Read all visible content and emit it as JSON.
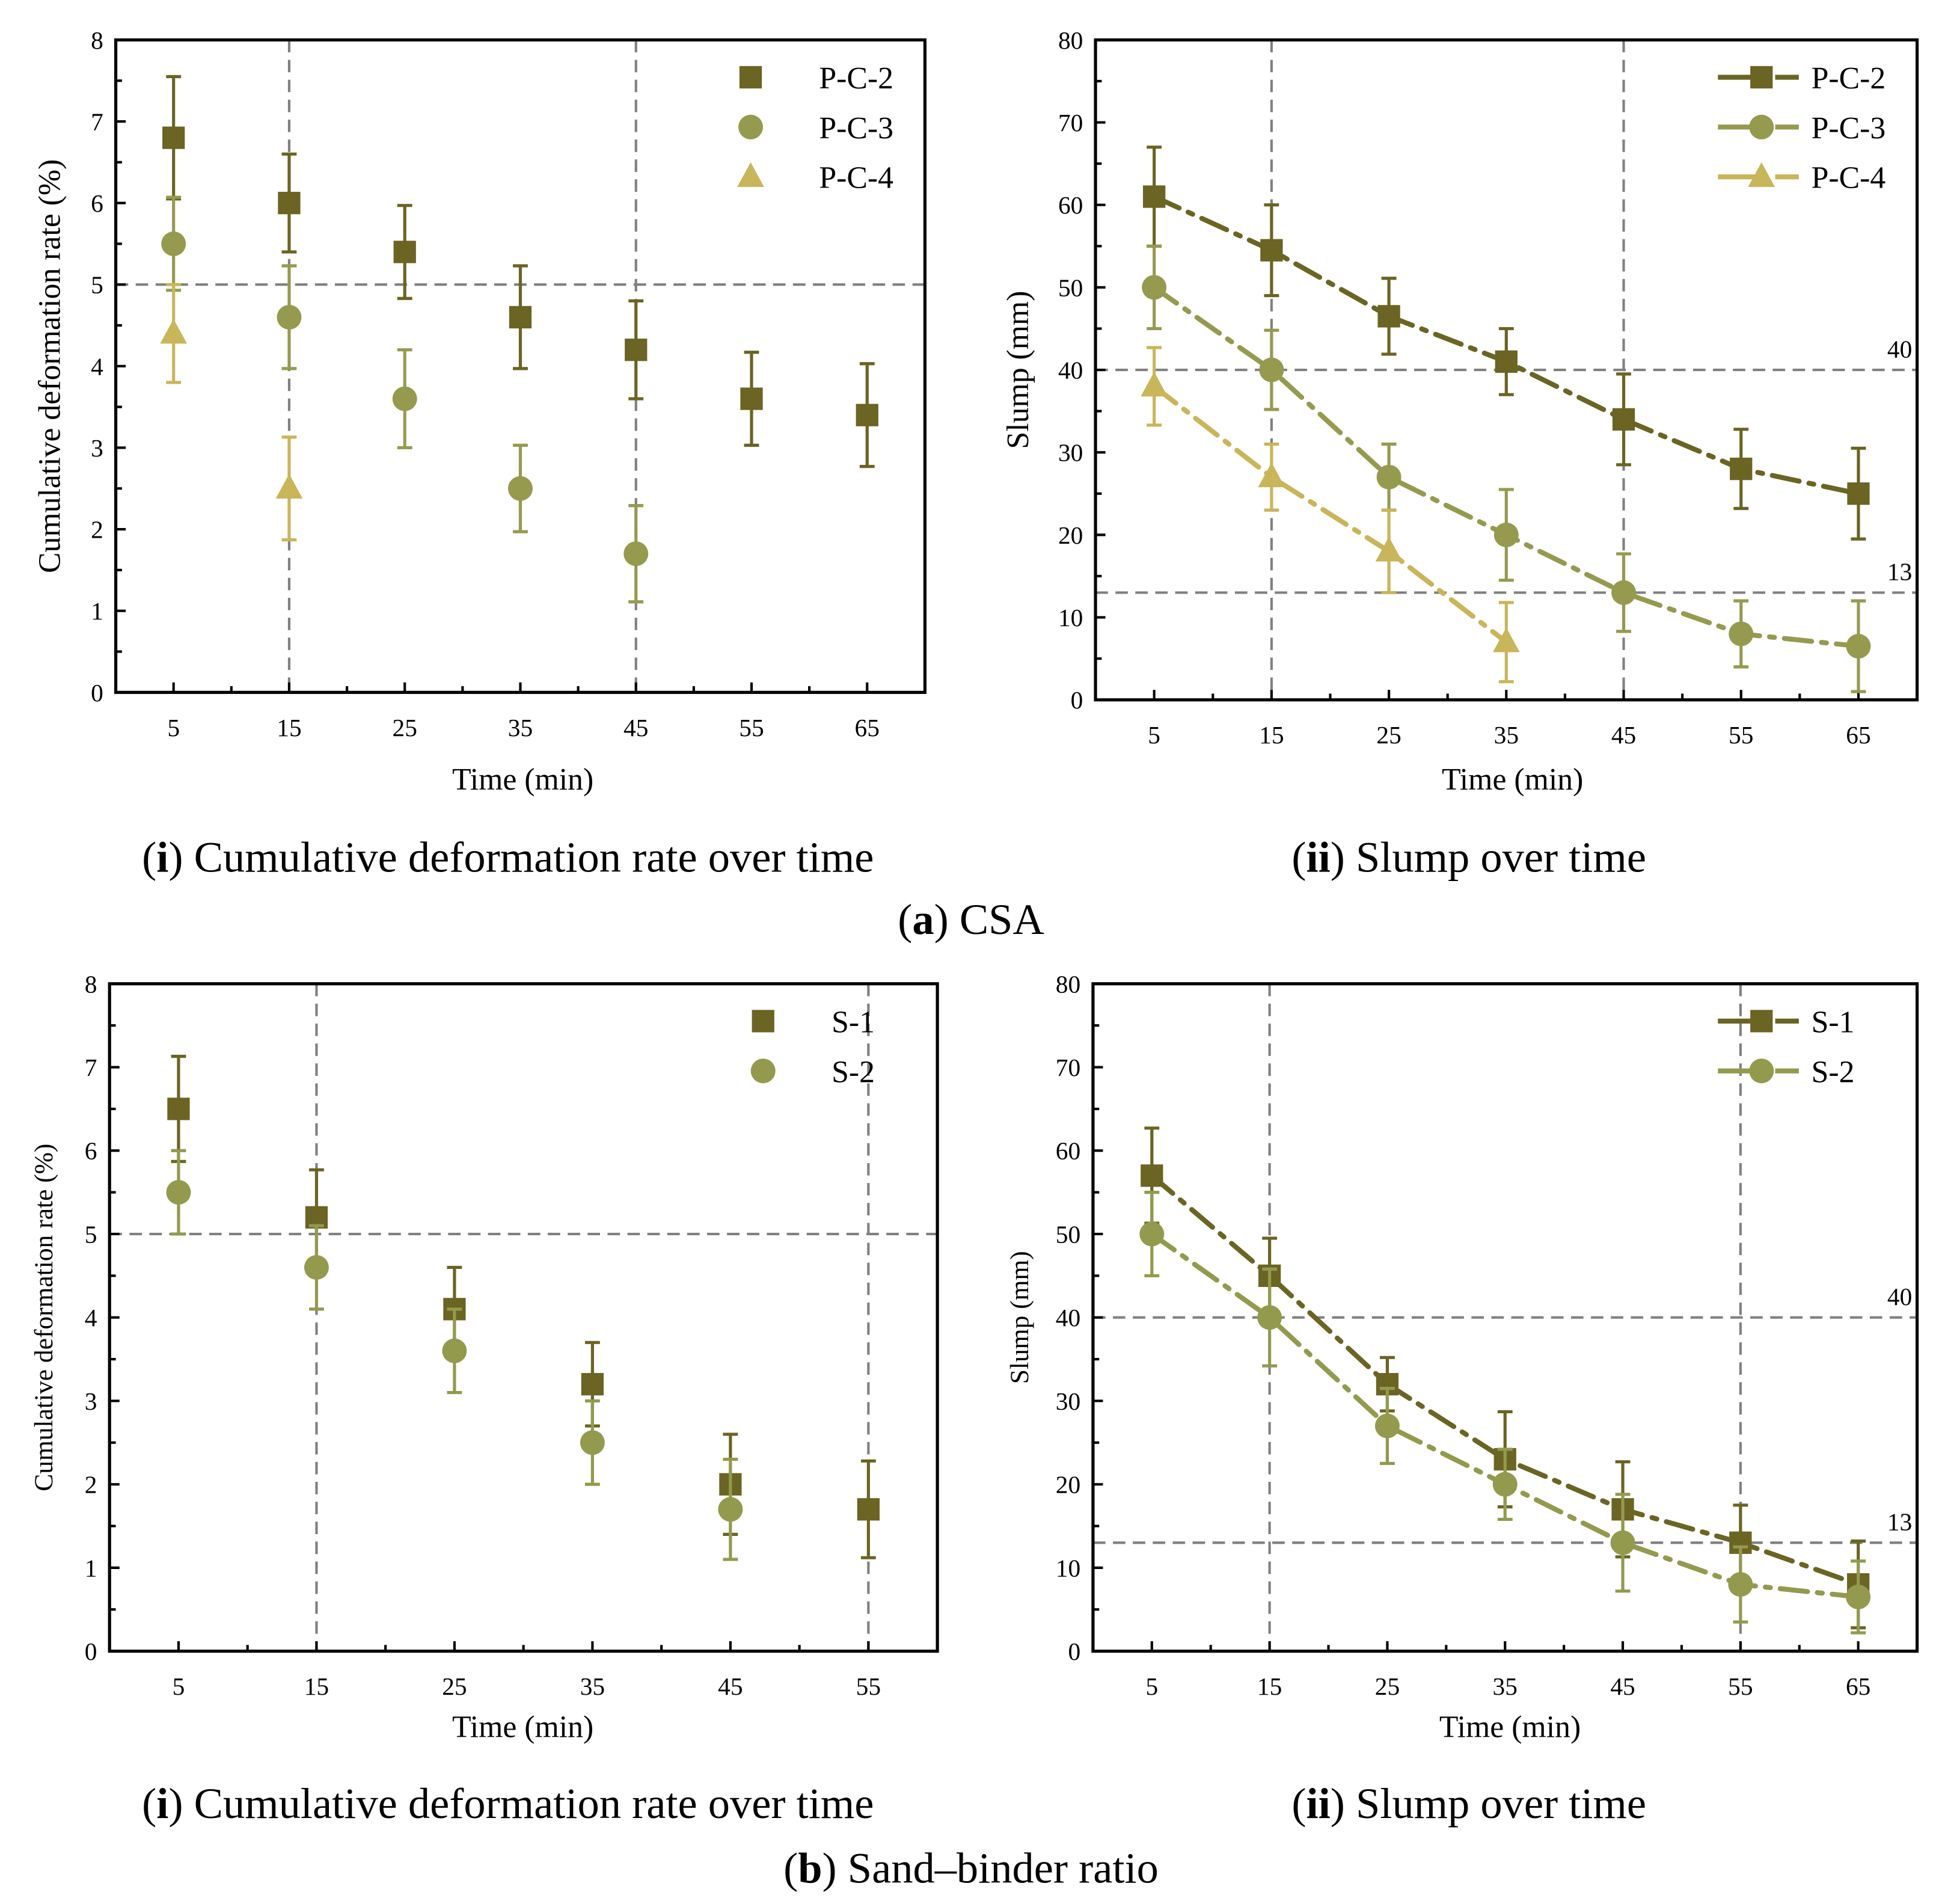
{
  "chart_data": [
    {
      "id": "a-i",
      "type": "scatter",
      "xlabel": "Time (min)",
      "ylabel": "Cumulative deformation rate (%)",
      "xlim": [
        0,
        70
      ],
      "ylim": [
        0,
        8
      ],
      "xticks": [
        5,
        15,
        25,
        35,
        45,
        55,
        65
      ],
      "yticks": [
        0,
        1,
        2,
        3,
        4,
        5,
        6,
        7,
        8
      ],
      "ref_h": [
        5
      ],
      "ref_v": [
        15,
        45
      ],
      "ref_labels": [],
      "legend": "top-right",
      "lines": false,
      "series": [
        {
          "name": "P-C-2",
          "marker": "square",
          "color": "#6b6423",
          "x": [
            5,
            15,
            25,
            35,
            45,
            55,
            65
          ],
          "y": [
            6.8,
            6.0,
            5.4,
            4.6,
            4.2,
            3.6,
            3.4
          ],
          "err": [
            0.75,
            0.6,
            0.57,
            0.63,
            0.6,
            0.57,
            0.63
          ]
        },
        {
          "name": "P-C-3",
          "marker": "circle",
          "color": "#969a4f",
          "x": [
            5,
            15,
            25,
            35,
            45
          ],
          "y": [
            5.5,
            4.6,
            3.6,
            2.5,
            1.7
          ],
          "err": [
            0.57,
            0.63,
            0.6,
            0.53,
            0.59
          ]
        },
        {
          "name": "P-C-4",
          "marker": "triangle",
          "color": "#c9b55a",
          "x": [
            5,
            15
          ],
          "y": [
            4.4,
            2.5
          ],
          "err": [
            0.6,
            0.63
          ]
        }
      ]
    },
    {
      "id": "a-ii",
      "type": "line",
      "xlabel": "Time (min)",
      "ylabel": "Slump (mm)",
      "xlim": [
        0,
        70
      ],
      "ylim": [
        0,
        80
      ],
      "xticks": [
        5,
        15,
        25,
        35,
        45,
        55,
        65
      ],
      "yticks": [
        0,
        10,
        20,
        30,
        40,
        50,
        60,
        70,
        80
      ],
      "ref_h": [
        40,
        13
      ],
      "ref_v": [
        15,
        45
      ],
      "ref_labels": [
        "40",
        "13"
      ],
      "legend": "top-right",
      "lines": true,
      "series": [
        {
          "name": "P-C-2",
          "marker": "square",
          "color": "#6b6423",
          "x": [
            5,
            15,
            25,
            35,
            45,
            55,
            65
          ],
          "y": [
            61,
            54.5,
            46.5,
            41,
            34,
            28,
            25
          ],
          "err": [
            6,
            5.5,
            4.6,
            4,
            5.5,
            4.8,
            5.5
          ]
        },
        {
          "name": "P-C-3",
          "marker": "circle",
          "color": "#969a4f",
          "x": [
            5,
            15,
            25,
            35,
            45,
            55,
            65
          ],
          "y": [
            50,
            40,
            27,
            20,
            13,
            8,
            6.5
          ],
          "err": [
            5,
            4.8,
            4,
            5.5,
            4.7,
            4,
            5.5
          ]
        },
        {
          "name": "P-C-4",
          "marker": "triangle",
          "color": "#c9b55a",
          "x": [
            5,
            15,
            25,
            35
          ],
          "y": [
            38,
            27,
            18,
            7
          ],
          "err": [
            4.7,
            4,
            5,
            4.8
          ]
        }
      ]
    },
    {
      "id": "b-i",
      "type": "scatter",
      "xlabel": "Time (min)",
      "ylabel": "Cumulative deformation rate (%)",
      "xlim": [
        0,
        60
      ],
      "ylim": [
        0,
        8
      ],
      "xticks": [
        5,
        15,
        25,
        35,
        45,
        55
      ],
      "yticks": [
        0,
        1,
        2,
        3,
        4,
        5,
        6,
        7,
        8
      ],
      "ref_h": [
        5
      ],
      "ref_v": [
        15,
        55
      ],
      "ref_labels": [],
      "legend": "top-right",
      "lines": false,
      "series": [
        {
          "name": "S-1",
          "marker": "square",
          "color": "#6b6423",
          "x": [
            5,
            15,
            25,
            35,
            45,
            55
          ],
          "y": [
            6.5,
            5.2,
            4.1,
            3.2,
            2.0,
            1.7
          ],
          "err": [
            0.63,
            0.57,
            0.5,
            0.5,
            0.6,
            0.58
          ]
        },
        {
          "name": "S-2",
          "marker": "circle",
          "color": "#939a4e",
          "x": [
            5,
            15,
            25,
            35,
            45
          ],
          "y": [
            5.5,
            4.6,
            3.6,
            2.5,
            1.7
          ],
          "err": [
            0.5,
            0.5,
            0.5,
            0.5,
            0.6
          ]
        }
      ]
    },
    {
      "id": "b-ii",
      "type": "line",
      "xlabel": "Time (min)",
      "ylabel": "Slump (mm)",
      "xlim": [
        0,
        70
      ],
      "ylim": [
        0,
        80
      ],
      "xticks": [
        5,
        15,
        25,
        35,
        45,
        55,
        65
      ],
      "yticks": [
        0,
        10,
        20,
        30,
        40,
        50,
        60,
        70,
        80
      ],
      "ref_h": [
        40,
        13
      ],
      "ref_v": [
        15,
        55
      ],
      "ref_labels": [
        "40",
        "13"
      ],
      "legend": "top-right",
      "lines": true,
      "series": [
        {
          "name": "S-1",
          "marker": "square",
          "color": "#6b6423",
          "x": [
            5,
            15,
            25,
            35,
            45,
            55,
            65
          ],
          "y": [
            57,
            45,
            32,
            23,
            17,
            13,
            8
          ],
          "err": [
            5.7,
            4.5,
            3.2,
            5.7,
            5.7,
            4.5,
            5.2
          ]
        },
        {
          "name": "S-2",
          "marker": "circle",
          "color": "#939a4e",
          "x": [
            5,
            15,
            25,
            35,
            45,
            55,
            65
          ],
          "y": [
            50,
            40,
            27,
            20,
            13,
            8,
            6.5
          ],
          "err": [
            5,
            5.8,
            4.5,
            4.2,
            5.8,
            4.5,
            4.3
          ]
        }
      ]
    }
  ],
  "captions": {
    "a_i": {
      "num": "i",
      "text": " Cumulative deformation rate over time"
    },
    "a_ii": {
      "num": "ii",
      "text": " Slump over time"
    },
    "a": {
      "num": "a",
      "text": " CSA"
    },
    "b_i": {
      "num": "i",
      "text": " Cumulative deformation rate over time"
    },
    "b_ii": {
      "num": "ii",
      "text": " Slump over time"
    },
    "b": {
      "num": "b",
      "text": " Sand–binder ratio"
    }
  }
}
